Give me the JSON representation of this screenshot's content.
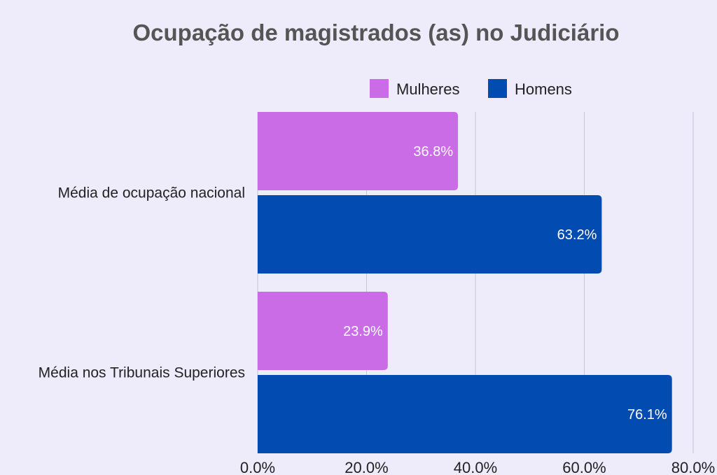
{
  "chart_data": {
    "type": "bar",
    "orientation": "horizontal",
    "title": "Ocupação de magistrados (as) no Judiciário",
    "xlabel": "",
    "ylabel": "",
    "categories": [
      "Média de ocupação nacional",
      "Média nos Tribunais Superiores"
    ],
    "series": [
      {
        "name": "Mulheres",
        "values": [
          36.8,
          23.9
        ],
        "labels": [
          "36.8%",
          "23.9%"
        ],
        "color": "#c96ce6"
      },
      {
        "name": "Homens",
        "values": [
          63.2,
          76.1
        ],
        "labels": [
          "63.2%",
          "76.1%"
        ],
        "color": "#024bb0"
      }
    ],
    "xlim": [
      0,
      80
    ],
    "xticks": [
      0,
      20,
      40,
      60,
      80
    ],
    "xtick_labels": [
      "0.0%",
      "20.0%",
      "40.0%",
      "60.0%",
      "80.0%"
    ],
    "grid": true,
    "legend_position": "top-right",
    "background_color": "#eeecfb",
    "gridline_color": "#c7c5d6"
  }
}
